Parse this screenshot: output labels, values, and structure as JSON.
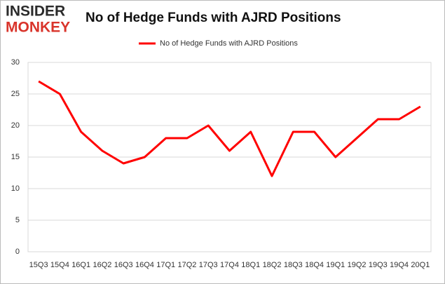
{
  "logo": {
    "line1": "INSIDER",
    "line2": "MONKEY"
  },
  "chart_data": {
    "type": "line",
    "title": "No of Hedge Funds with AJRD Positions",
    "categories": [
      "15Q3",
      "15Q4",
      "16Q1",
      "16Q2",
      "16Q3",
      "16Q4",
      "17Q1",
      "17Q2",
      "17Q3",
      "17Q4",
      "18Q1",
      "18Q2",
      "18Q3",
      "18Q4",
      "19Q1",
      "19Q2",
      "19Q3",
      "19Q4",
      "20Q1"
    ],
    "series": [
      {
        "name": "No of Hedge Funds with AJRD Positions",
        "color": "#ff0000",
        "values": [
          27,
          25,
          19,
          16,
          14,
          15,
          18,
          18,
          20,
          16,
          19,
          12,
          19,
          19,
          15,
          18,
          21,
          21,
          23
        ]
      }
    ],
    "ylim": [
      0,
      30
    ],
    "yticks": [
      0,
      5,
      10,
      15,
      20,
      25,
      30
    ],
    "grid": true,
    "legend": "top"
  }
}
